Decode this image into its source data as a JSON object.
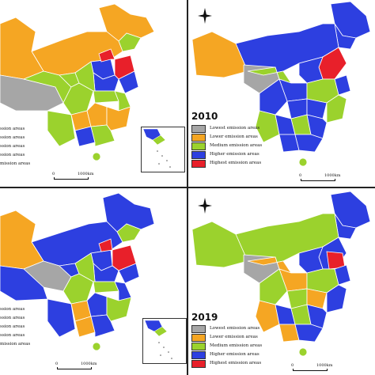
{
  "panels": [
    {
      "year": ""
    },
    {
      "year": "2010"
    },
    {
      "year": ""
    },
    {
      "year": "2019"
    }
  ],
  "legend": {
    "items": [
      {
        "label": "Lowest emission areas",
        "color": "#a6a6a6"
      },
      {
        "label": "Lower emission areas",
        "color": "#f5a623"
      },
      {
        "label": "Medium emission areas",
        "color": "#9bd22d"
      },
      {
        "label": "Higher emission areas",
        "color": "#2d3fe0"
      },
      {
        "label": "Highest emission areas",
        "color": "#e8202a"
      }
    ],
    "truncated_items": [
      {
        "label": "ssion areas"
      },
      {
        "label": "ssion areas"
      },
      {
        "label": "ssion areas"
      },
      {
        "label": "ssion areas"
      },
      {
        "label": "mission areas"
      }
    ]
  },
  "scale": {
    "zero": "0",
    "distance": "1000km"
  },
  "colors": {
    "lowest": "#a6a6a6",
    "lower": "#f5a623",
    "medium": "#9bd22d",
    "higher": "#2d3fe0",
    "highest": "#e8202a",
    "border": "#ffffff"
  },
  "icons": {
    "compass": "north-arrow-icon"
  }
}
